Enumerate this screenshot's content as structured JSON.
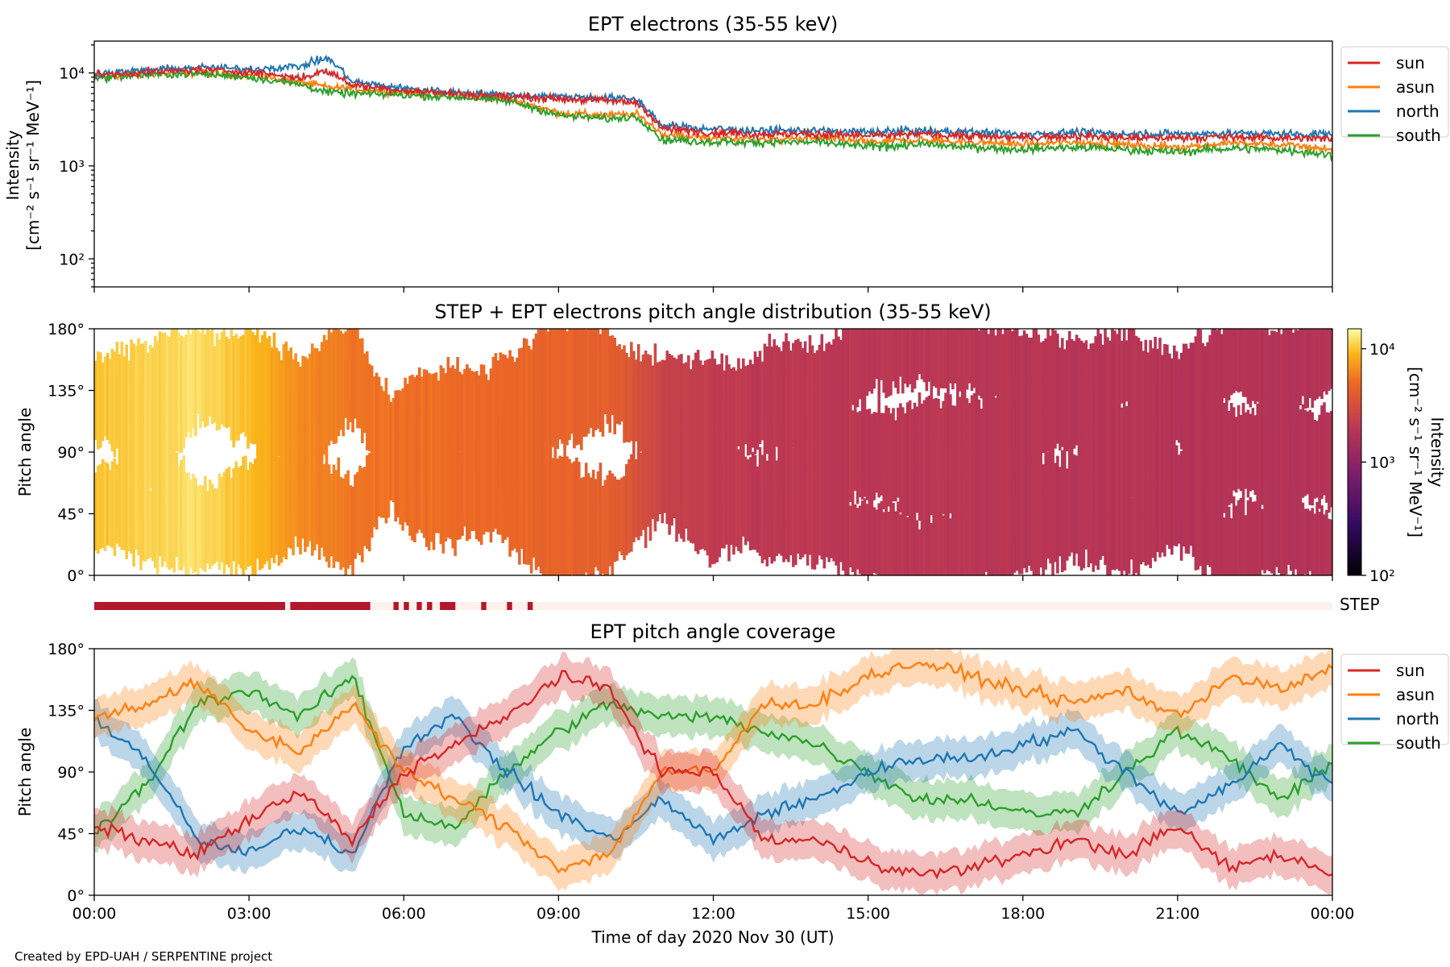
{
  "footer": {
    "credit": "Created by EPD-UAH / SERPENTINE project"
  },
  "colors": {
    "sun": "#d62728",
    "asun": "#ff7f0e",
    "north": "#1f77b4",
    "south": "#2ca02c",
    "step_on": "#b2182b",
    "step_off": "#fff1ee"
  },
  "x_axis": {
    "label": "Time of day 2020 Nov 30 (UT)",
    "ticks": [
      "00:00",
      "03:00",
      "06:00",
      "09:00",
      "12:00",
      "15:00",
      "18:00",
      "21:00",
      "00:00"
    ],
    "range_hours": [
      0,
      24
    ]
  },
  "chart_data": [
    {
      "type": "line",
      "title": "EPT electrons (35-55 keV)",
      "ylabel": "Intensity",
      "yunit": "[cm⁻² s⁻¹ sr⁻¹ MeV⁻¹]",
      "yscale": "log",
      "ylim": [
        50,
        22000
      ],
      "yticks": [
        "10²",
        "10³",
        "10⁴"
      ],
      "legend": "right",
      "x": [
        0,
        1,
        2,
        3,
        4,
        4.5,
        5,
        6,
        7,
        8,
        9,
        10,
        10.5,
        11,
        12,
        13,
        14,
        15,
        16,
        17,
        18,
        19,
        20,
        21,
        22,
        23,
        24
      ],
      "series": [
        {
          "name": "sun",
          "values": [
            9500,
            10200,
            10800,
            10300,
            8800,
            10500,
            7400,
            6500,
            6000,
            5600,
            5300,
            5000,
            4800,
            2500,
            2300,
            2200,
            2200,
            2100,
            2200,
            2100,
            2000,
            2100,
            2000,
            2000,
            2050,
            2000,
            1950
          ]
        },
        {
          "name": "asun",
          "values": [
            9000,
            9800,
            10000,
            9500,
            8000,
            7000,
            6800,
            6200,
            5800,
            5300,
            3700,
            3500,
            3600,
            2200,
            2000,
            1900,
            2000,
            1800,
            1900,
            1800,
            1700,
            1800,
            1700,
            1600,
            1750,
            1700,
            1500
          ]
        },
        {
          "name": "north",
          "values": [
            9800,
            10600,
            11500,
            11000,
            11800,
            14500,
            8000,
            6800,
            6200,
            5800,
            5600,
            5400,
            5200,
            2700,
            2500,
            2400,
            2400,
            2300,
            2400,
            2300,
            2200,
            2300,
            2200,
            2200,
            2250,
            2200,
            2200
          ]
        },
        {
          "name": "south",
          "values": [
            8800,
            9500,
            9800,
            9000,
            7500,
            6200,
            6000,
            5800,
            5500,
            5000,
            3500,
            3200,
            3400,
            1900,
            1800,
            1800,
            1800,
            1600,
            1700,
            1600,
            1500,
            1600,
            1500,
            1400,
            1550,
            1500,
            1300
          ]
        }
      ]
    },
    {
      "type": "heatmap",
      "title": "STEP + EPT electrons pitch angle distribution (35-55 keV)",
      "ylabel": "Pitch angle",
      "ylim": [
        0,
        180
      ],
      "yticks": [
        "0°",
        "45°",
        "90°",
        "135°",
        "180°"
      ],
      "colorbar": {
        "label": "Intensity",
        "unit": "[cm⁻² s⁻¹ sr⁻¹ MeV⁻¹]",
        "scale": "log",
        "range": [
          100,
          15000
        ],
        "ticks": [
          "10²",
          "10³",
          "10⁴"
        ]
      },
      "x": [
        0,
        1,
        2,
        3,
        4,
        5,
        6,
        7,
        8,
        9,
        10,
        11,
        12,
        13,
        14,
        15,
        16,
        17,
        18,
        19,
        20,
        21,
        22,
        23,
        24
      ],
      "intensity": [
        10000,
        11000,
        12000,
        9500,
        6500,
        5500,
        5200,
        5000,
        4800,
        4500,
        4200,
        2500,
        2200,
        2100,
        2100,
        2000,
        2000,
        1950,
        1950,
        1900,
        1900,
        1850,
        1850,
        1800,
        1800
      ]
    },
    {
      "type": "bar",
      "title": "STEP",
      "step_on_hours": [
        [
          0,
          3.7
        ],
        [
          3.8,
          5.35
        ],
        [
          5.8,
          5.9
        ],
        [
          6.0,
          6.1
        ],
        [
          6.25,
          6.35
        ],
        [
          6.45,
          6.55
        ],
        [
          6.7,
          7.0
        ],
        [
          7.5,
          7.6
        ],
        [
          8.0,
          8.1
        ],
        [
          8.4,
          8.5
        ]
      ]
    },
    {
      "type": "line",
      "title": "EPT pitch angle coverage",
      "ylabel": "Pitch angle",
      "ylim": [
        0,
        180
      ],
      "yticks": [
        "0°",
        "45°",
        "90°",
        "135°",
        "180°"
      ],
      "legend": "right",
      "x": [
        0,
        1,
        2,
        3,
        4,
        5,
        6,
        7,
        8,
        9,
        10,
        11,
        12,
        13,
        14,
        15,
        16,
        17,
        18,
        19,
        20,
        21,
        22,
        23,
        24
      ],
      "series": [
        {
          "name": "sun",
          "values": [
            50,
            40,
            30,
            55,
            75,
            40,
            90,
            110,
            130,
            160,
            150,
            90,
            90,
            40,
            40,
            25,
            15,
            20,
            30,
            40,
            30,
            50,
            20,
            30,
            15
          ]
        },
        {
          "name": "asun",
          "values": [
            130,
            140,
            155,
            120,
            105,
            140,
            90,
            70,
            50,
            20,
            30,
            90,
            90,
            140,
            140,
            160,
            170,
            160,
            150,
            140,
            150,
            130,
            160,
            150,
            165
          ]
        },
        {
          "name": "north",
          "values": [
            130,
            100,
            40,
            30,
            50,
            30,
            110,
            130,
            90,
            60,
            40,
            70,
            40,
            60,
            70,
            90,
            100,
            100,
            110,
            120,
            90,
            60,
            80,
            110,
            80
          ]
        },
        {
          "name": "south",
          "values": [
            45,
            80,
            140,
            150,
            130,
            160,
            60,
            50,
            90,
            120,
            140,
            130,
            130,
            120,
            110,
            90,
            70,
            70,
            60,
            60,
            90,
            120,
            100,
            70,
            95
          ]
        }
      ]
    }
  ]
}
